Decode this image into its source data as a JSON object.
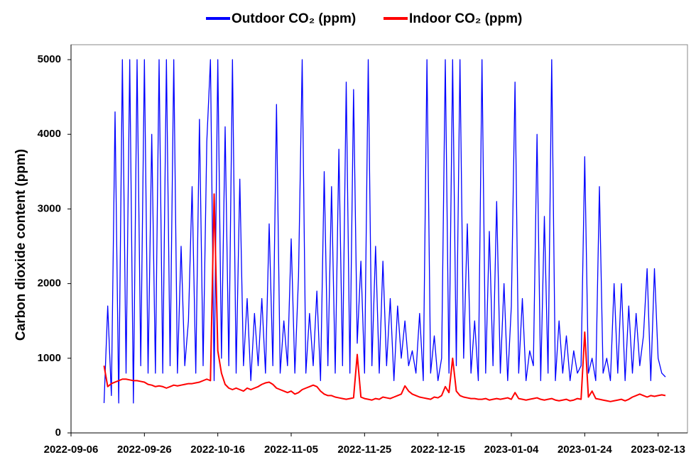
{
  "chart_data": {
    "type": "line",
    "ylabel": "Carbon dioxide content (ppm)",
    "xlim": [
      "2022-09-06",
      "2023-02-21"
    ],
    "xticks": [
      "2022-09-06",
      "2022-09-26",
      "2022-10-16",
      "2022-11-05",
      "2022-11-25",
      "2022-12-15",
      "2023-01-04",
      "2023-01-24",
      "2023-02-13"
    ],
    "ylim": [
      0,
      5200
    ],
    "yticks": [
      0,
      1000,
      2000,
      3000,
      4000,
      5000
    ],
    "legend": "top",
    "x": [
      "2022-09-15",
      "2022-09-16",
      "2022-09-17",
      "2022-09-18",
      "2022-09-19",
      "2022-09-20",
      "2022-09-21",
      "2022-09-22",
      "2022-09-23",
      "2022-09-24",
      "2022-09-25",
      "2022-09-26",
      "2022-09-27",
      "2022-09-28",
      "2022-09-29",
      "2022-09-30",
      "2022-10-01",
      "2022-10-02",
      "2022-10-03",
      "2022-10-04",
      "2022-10-05",
      "2022-10-06",
      "2022-10-07",
      "2022-10-08",
      "2022-10-09",
      "2022-10-10",
      "2022-10-11",
      "2022-10-12",
      "2022-10-13",
      "2022-10-14",
      "2022-10-15",
      "2022-10-16",
      "2022-10-17",
      "2022-10-18",
      "2022-10-19",
      "2022-10-20",
      "2022-10-21",
      "2022-10-22",
      "2022-10-23",
      "2022-10-24",
      "2022-10-25",
      "2022-10-26",
      "2022-10-27",
      "2022-10-28",
      "2022-10-29",
      "2022-10-30",
      "2022-10-31",
      "2022-11-01",
      "2022-11-02",
      "2022-11-03",
      "2022-11-04",
      "2022-11-05",
      "2022-11-06",
      "2022-11-07",
      "2022-11-08",
      "2022-11-09",
      "2022-11-10",
      "2022-11-11",
      "2022-11-12",
      "2022-11-13",
      "2022-11-14",
      "2022-11-15",
      "2022-11-16",
      "2022-11-17",
      "2022-11-18",
      "2022-11-19",
      "2022-11-20",
      "2022-11-21",
      "2022-11-22",
      "2022-11-23",
      "2022-11-24",
      "2022-11-25",
      "2022-11-26",
      "2022-11-27",
      "2022-11-28",
      "2022-11-29",
      "2022-11-30",
      "2022-12-01",
      "2022-12-02",
      "2022-12-03",
      "2022-12-04",
      "2022-12-05",
      "2022-12-06",
      "2022-12-07",
      "2022-12-08",
      "2022-12-09",
      "2022-12-10",
      "2022-12-11",
      "2022-12-12",
      "2022-12-13",
      "2022-12-14",
      "2022-12-15",
      "2022-12-16",
      "2022-12-17",
      "2022-12-18",
      "2022-12-19",
      "2022-12-20",
      "2022-12-21",
      "2022-12-22",
      "2022-12-23",
      "2022-12-24",
      "2022-12-25",
      "2022-12-26",
      "2022-12-27",
      "2022-12-28",
      "2022-12-29",
      "2022-12-30",
      "2022-12-31",
      "2023-01-01",
      "2023-01-02",
      "2023-01-03",
      "2023-01-04",
      "2023-01-05",
      "2023-01-06",
      "2023-01-07",
      "2023-01-08",
      "2023-01-09",
      "2023-01-10",
      "2023-01-11",
      "2023-01-12",
      "2023-01-13",
      "2023-01-14",
      "2023-01-15",
      "2023-01-16",
      "2023-01-17",
      "2023-01-18",
      "2023-01-19",
      "2023-01-20",
      "2023-01-21",
      "2023-01-22",
      "2023-01-23",
      "2023-01-24",
      "2023-01-25",
      "2023-01-26",
      "2023-01-27",
      "2023-01-28",
      "2023-01-29",
      "2023-01-30",
      "2023-01-31",
      "2023-02-01",
      "2023-02-02",
      "2023-02-03",
      "2023-02-04",
      "2023-02-05",
      "2023-02-06",
      "2023-02-07",
      "2023-02-08",
      "2023-02-09",
      "2023-02-10",
      "2023-02-11",
      "2023-02-12",
      "2023-02-13",
      "2023-02-14",
      "2023-02-15"
    ],
    "series": [
      {
        "name": "Outdoor CO₂ (ppm)",
        "color": "#0000ff",
        "values": [
          400,
          1700,
          500,
          4300,
          400,
          5000,
          800,
          5000,
          400,
          5000,
          900,
          5000,
          800,
          4000,
          800,
          5000,
          800,
          5000,
          900,
          5000,
          800,
          2500,
          900,
          1500,
          3300,
          800,
          4200,
          900,
          3900,
          5000,
          700,
          5000,
          1000,
          4100,
          900,
          5000,
          800,
          3400,
          900,
          1800,
          700,
          1600,
          900,
          1800,
          800,
          2800,
          900,
          4400,
          800,
          1500,
          900,
          2600,
          800,
          2100,
          5000,
          800,
          1600,
          900,
          1900,
          700,
          3500,
          900,
          3300,
          800,
          3800,
          900,
          4700,
          800,
          4600,
          1200,
          2300,
          800,
          5000,
          900,
          2500,
          800,
          2300,
          900,
          1800,
          700,
          1700,
          1000,
          1500,
          900,
          1100,
          800,
          1600,
          700,
          5000,
          800,
          1300,
          700,
          1000,
          5000,
          800,
          5000,
          900,
          5000,
          1000,
          2800,
          800,
          1500,
          700,
          5000,
          800,
          2700,
          900,
          3100,
          800,
          2000,
          700,
          1700,
          4700,
          800,
          1800,
          700,
          1100,
          900,
          4000,
          700,
          2900,
          800,
          5000,
          700,
          1500,
          800,
          1300,
          700,
          1100,
          800,
          900,
          3700,
          800,
          1000,
          700,
          3300,
          800,
          1000,
          700,
          2000,
          800,
          2000,
          700,
          1700,
          800,
          1600,
          900,
          1300,
          2200,
          700,
          2200,
          1000,
          800,
          750
        ]
      },
      {
        "name": "Indoor CO₂ (ppm)",
        "color": "#ff0000",
        "values": [
          900,
          620,
          660,
          680,
          700,
          720,
          720,
          710,
          700,
          700,
          690,
          680,
          650,
          640,
          620,
          630,
          620,
          600,
          620,
          640,
          630,
          640,
          650,
          660,
          660,
          670,
          680,
          700,
          720,
          700,
          3200,
          1100,
          800,
          650,
          600,
          580,
          600,
          580,
          560,
          600,
          580,
          600,
          620,
          650,
          670,
          680,
          650,
          600,
          580,
          560,
          540,
          560,
          520,
          540,
          580,
          600,
          620,
          640,
          620,
          560,
          520,
          500,
          500,
          480,
          470,
          460,
          450,
          460,
          470,
          1050,
          480,
          460,
          450,
          440,
          460,
          450,
          480,
          470,
          460,
          480,
          500,
          520,
          630,
          560,
          520,
          500,
          480,
          470,
          460,
          450,
          480,
          470,
          500,
          620,
          540,
          1000,
          560,
          500,
          480,
          470,
          460,
          460,
          450,
          450,
          460,
          440,
          450,
          460,
          450,
          460,
          470,
          450,
          540,
          460,
          450,
          440,
          450,
          460,
          470,
          450,
          440,
          450,
          460,
          440,
          430,
          440,
          450,
          430,
          440,
          460,
          450,
          1350,
          480,
          560,
          460,
          450,
          440,
          430,
          420,
          430,
          440,
          450,
          430,
          450,
          480,
          500,
          520,
          500,
          480,
          500,
          490,
          500,
          510,
          500
        ]
      }
    ]
  }
}
